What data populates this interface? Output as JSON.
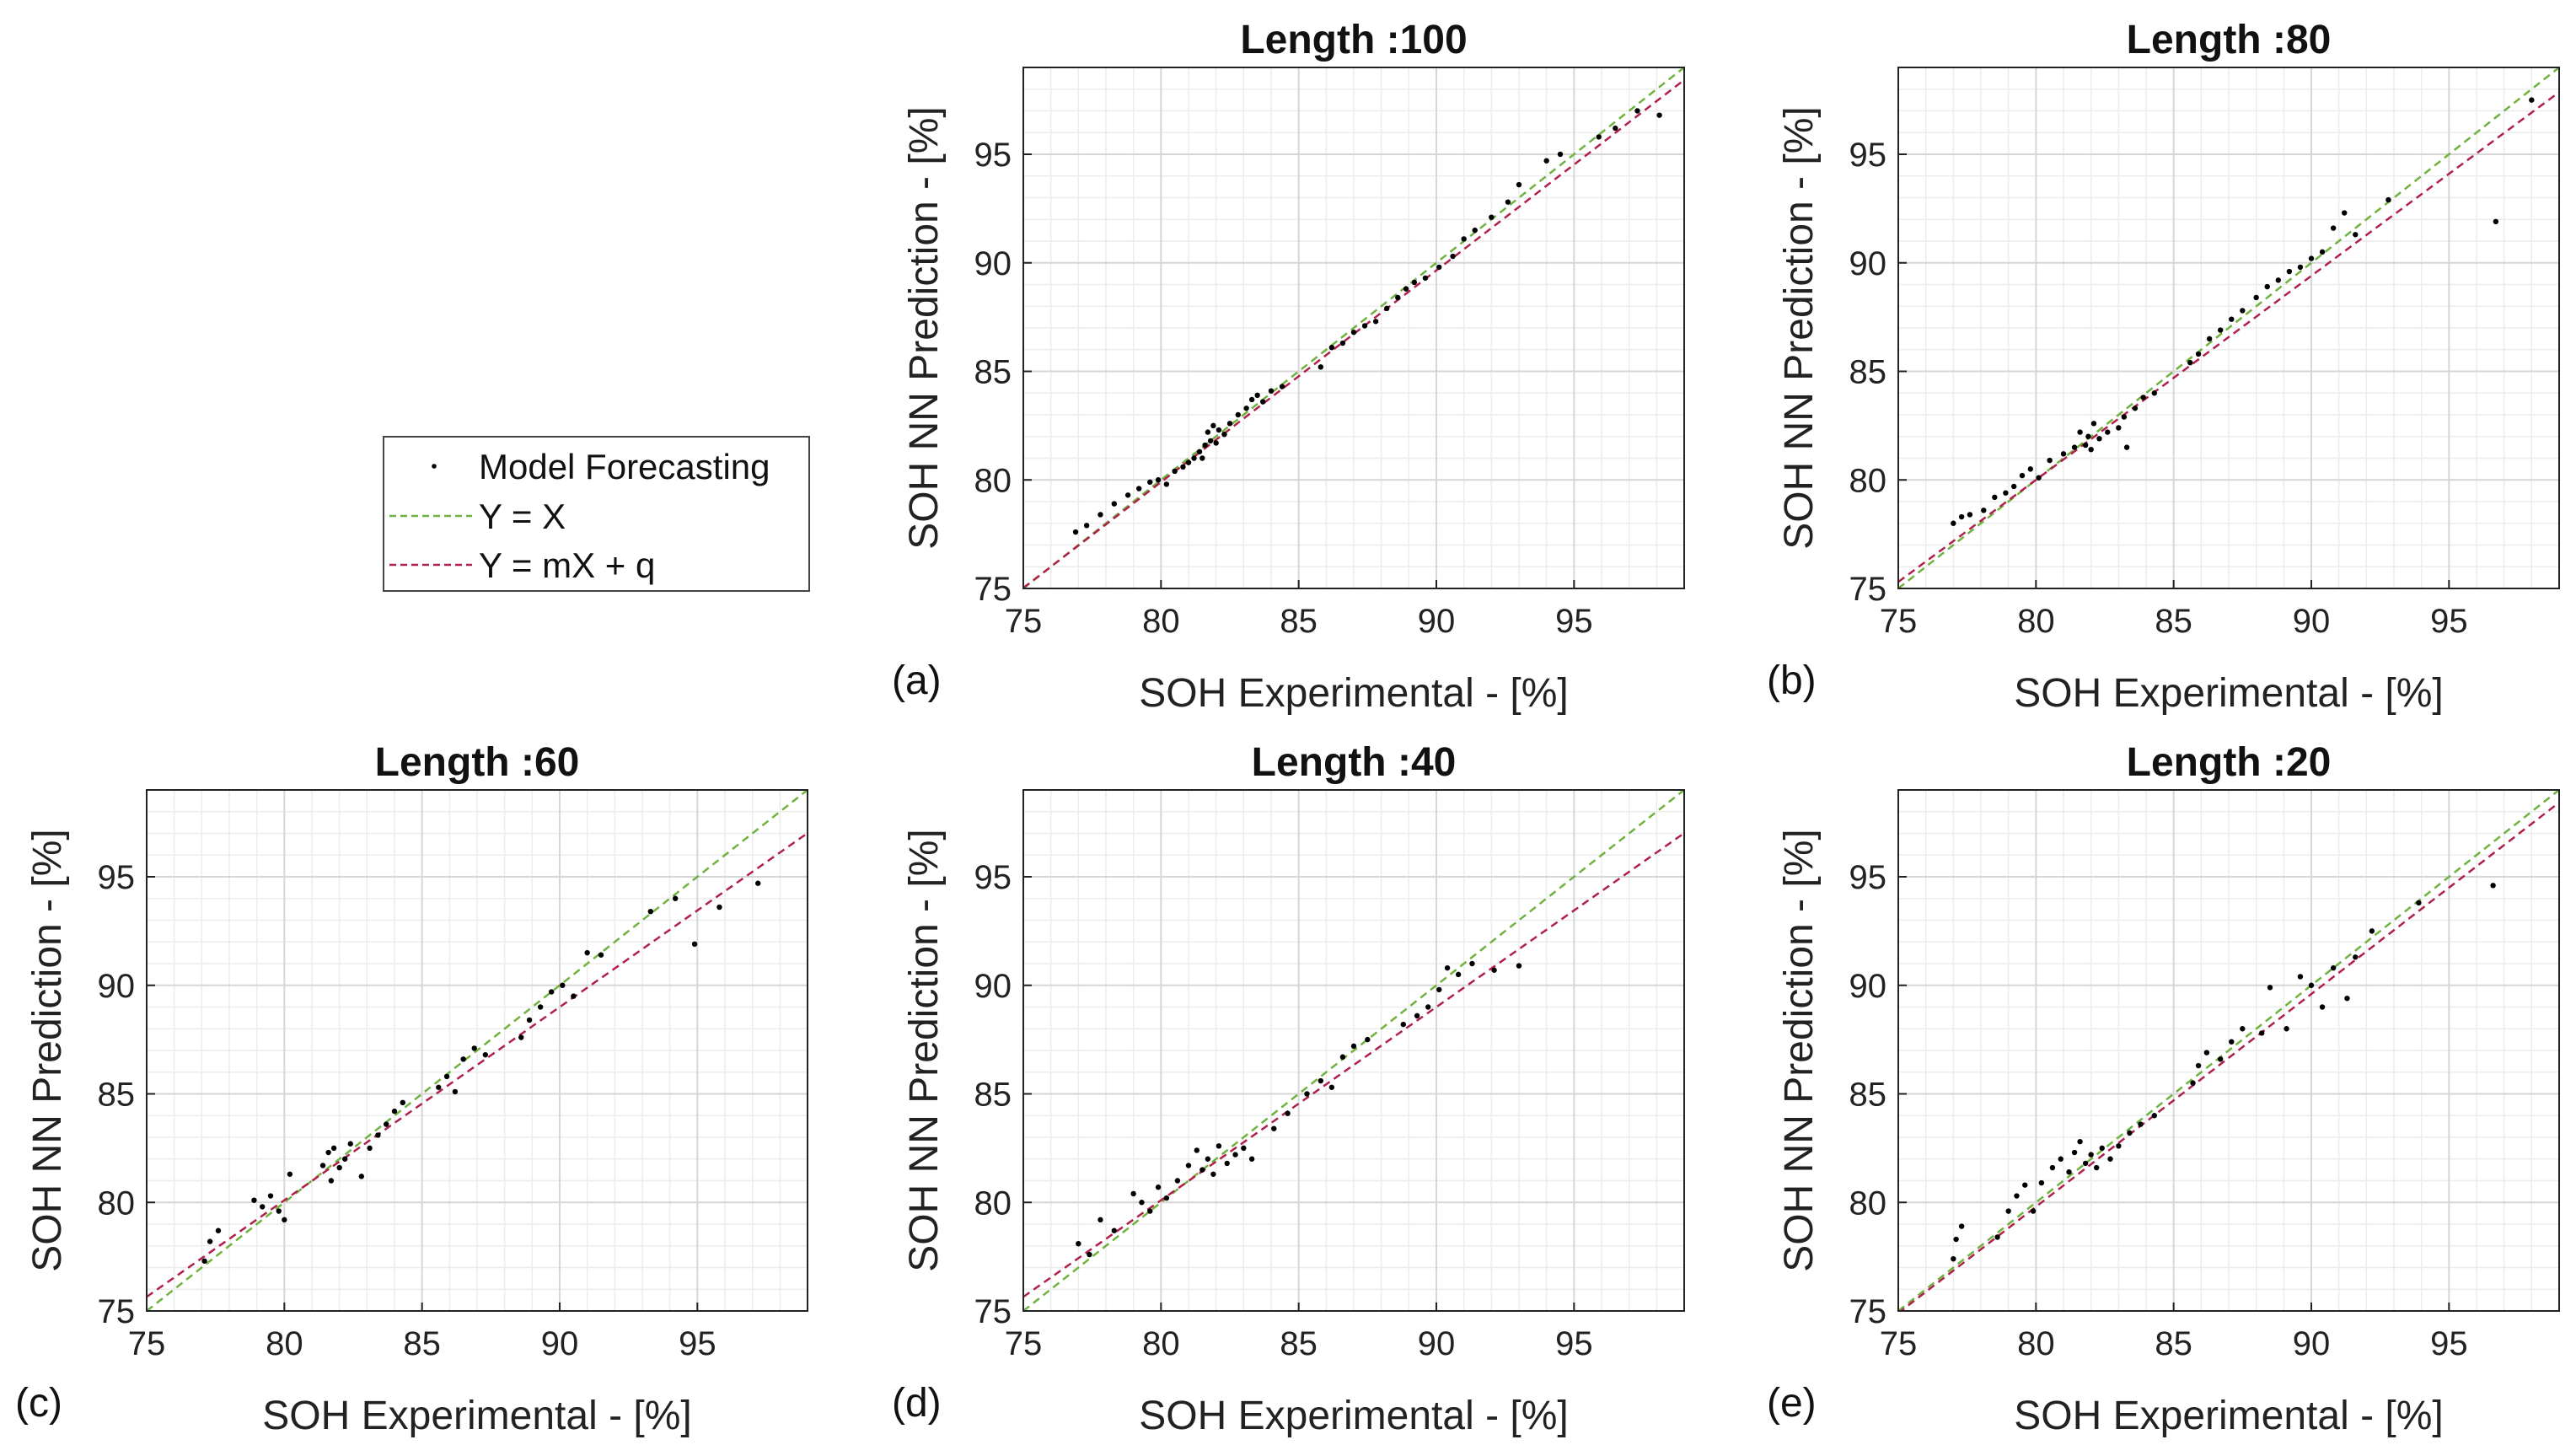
{
  "colors": {
    "identity_line": "#6fb33f",
    "fit_line": "#b0204a",
    "points": "#000000",
    "grid_major": "#d6d6d6",
    "grid_minor": "#ececec",
    "axes": "#222222"
  },
  "legend": {
    "items": [
      {
        "label": "Model Forecasting",
        "kind": "marker"
      },
      {
        "label": "Y = X",
        "kind": "identity"
      },
      {
        "label": "Y = mX + q",
        "kind": "fit"
      }
    ]
  },
  "chart_data": [
    {
      "panel": "(a)",
      "type": "scatter",
      "title": "Length :100",
      "xlabel": "SOH Experimental - [%]",
      "ylabel": "SOH NN Prediction - [%]",
      "xlim": [
        75,
        99
      ],
      "ylim": [
        75,
        99
      ],
      "xticks": [
        75,
        80,
        85,
        90,
        95
      ],
      "yticks": [
        75,
        80,
        85,
        90,
        95
      ],
      "grid": true,
      "identity_line": {
        "m": 1.0,
        "q": 0.0
      },
      "fit_line": {
        "m": 0.975,
        "q": 1.9
      },
      "points": [
        [
          76.9,
          77.6
        ],
        [
          77.3,
          77.9
        ],
        [
          77.8,
          78.4
        ],
        [
          78.3,
          78.9
        ],
        [
          78.8,
          79.3
        ],
        [
          79.2,
          79.6
        ],
        [
          79.6,
          79.9
        ],
        [
          79.9,
          80.0
        ],
        [
          80.2,
          79.8
        ],
        [
          80.5,
          80.4
        ],
        [
          80.8,
          80.6
        ],
        [
          81.0,
          80.8
        ],
        [
          81.2,
          81.0
        ],
        [
          81.4,
          81.3
        ],
        [
          81.5,
          81.0
        ],
        [
          81.6,
          81.6
        ],
        [
          81.7,
          82.2
        ],
        [
          81.8,
          81.8
        ],
        [
          81.9,
          82.5
        ],
        [
          82.0,
          81.7
        ],
        [
          82.1,
          82.3
        ],
        [
          82.3,
          82.1
        ],
        [
          82.5,
          82.6
        ],
        [
          82.8,
          83.0
        ],
        [
          83.1,
          83.3
        ],
        [
          83.3,
          83.7
        ],
        [
          83.5,
          83.9
        ],
        [
          83.7,
          83.6
        ],
        [
          84.0,
          84.1
        ],
        [
          84.4,
          84.3
        ],
        [
          85.8,
          85.2
        ],
        [
          86.2,
          86.1
        ],
        [
          86.6,
          86.3
        ],
        [
          87.0,
          86.8
        ],
        [
          87.4,
          87.1
        ],
        [
          87.8,
          87.3
        ],
        [
          88.2,
          87.9
        ],
        [
          88.6,
          88.4
        ],
        [
          88.9,
          88.8
        ],
        [
          89.2,
          89.1
        ],
        [
          89.6,
          89.3
        ],
        [
          90.1,
          89.8
        ],
        [
          90.6,
          90.3
        ],
        [
          91.0,
          91.1
        ],
        [
          91.4,
          91.5
        ],
        [
          92.0,
          92.1
        ],
        [
          92.6,
          92.8
        ],
        [
          93.0,
          93.6
        ],
        [
          94.0,
          94.7
        ],
        [
          94.5,
          95.0
        ],
        [
          95.9,
          95.8
        ],
        [
          96.5,
          96.2
        ],
        [
          97.3,
          97.0
        ],
        [
          98.1,
          96.8
        ]
      ]
    },
    {
      "panel": "(b)",
      "type": "scatter",
      "title": "Length :80",
      "xlabel": "SOH Experimental - [%]",
      "ylabel": "SOH NN Prediction - [%]",
      "xlim": [
        75,
        99
      ],
      "ylim": [
        75,
        99
      ],
      "xticks": [
        75,
        80,
        85,
        90,
        95
      ],
      "yticks": [
        75,
        80,
        85,
        90,
        95
      ],
      "grid": true,
      "identity_line": {
        "m": 1.0,
        "q": 0.0
      },
      "fit_line": {
        "m": 0.94,
        "q": 4.8
      },
      "points": [
        [
          77.0,
          78.0
        ],
        [
          77.3,
          78.3
        ],
        [
          77.6,
          78.4
        ],
        [
          78.1,
          78.6
        ],
        [
          78.5,
          79.2
        ],
        [
          78.9,
          79.4
        ],
        [
          79.2,
          79.7
        ],
        [
          79.5,
          80.2
        ],
        [
          79.8,
          80.5
        ],
        [
          80.1,
          80.1
        ],
        [
          80.5,
          80.9
        ],
        [
          81.0,
          81.2
        ],
        [
          81.4,
          81.5
        ],
        [
          81.6,
          82.2
        ],
        [
          81.8,
          81.6
        ],
        [
          81.9,
          82.0
        ],
        [
          82.0,
          81.4
        ],
        [
          82.1,
          82.6
        ],
        [
          82.3,
          81.9
        ],
        [
          82.6,
          82.2
        ],
        [
          83.0,
          82.4
        ],
        [
          83.2,
          82.9
        ],
        [
          83.3,
          81.5
        ],
        [
          83.6,
          83.3
        ],
        [
          83.9,
          83.8
        ],
        [
          84.3,
          84.0
        ],
        [
          85.6,
          85.4
        ],
        [
          85.9,
          85.8
        ],
        [
          86.3,
          86.5
        ],
        [
          86.7,
          86.9
        ],
        [
          87.1,
          87.4
        ],
        [
          87.5,
          87.8
        ],
        [
          88.0,
          88.4
        ],
        [
          88.4,
          88.9
        ],
        [
          88.8,
          89.2
        ],
        [
          89.2,
          89.6
        ],
        [
          89.6,
          89.8
        ],
        [
          90.0,
          90.2
        ],
        [
          90.4,
          90.5
        ],
        [
          90.8,
          91.6
        ],
        [
          91.2,
          92.3
        ],
        [
          91.6,
          91.3
        ],
        [
          92.8,
          92.9
        ],
        [
          96.7,
          91.9
        ],
        [
          98.0,
          97.5
        ]
      ]
    },
    {
      "panel": "(c)",
      "type": "scatter",
      "title": "Length :60",
      "xlabel": "SOH Experimental - [%]",
      "ylabel": "SOH NN Prediction - [%]",
      "xlim": [
        75,
        99
      ],
      "ylim": [
        75,
        99
      ],
      "xticks": [
        75,
        80,
        85,
        90,
        95
      ],
      "yticks": [
        75,
        80,
        85,
        90,
        95
      ],
      "grid": true,
      "identity_line": {
        "m": 1.0,
        "q": 0.0
      },
      "fit_line": {
        "m": 0.89,
        "q": 8.9
      },
      "points": [
        [
          77.1,
          77.3
        ],
        [
          77.3,
          78.2
        ],
        [
          77.6,
          78.7
        ],
        [
          78.9,
          80.1
        ],
        [
          79.2,
          79.8
        ],
        [
          79.5,
          80.3
        ],
        [
          79.8,
          79.6
        ],
        [
          80.0,
          79.2
        ],
        [
          80.2,
          81.3
        ],
        [
          81.4,
          81.7
        ],
        [
          81.6,
          82.3
        ],
        [
          81.7,
          81.0
        ],
        [
          81.8,
          82.5
        ],
        [
          82.0,
          81.6
        ],
        [
          82.2,
          82.0
        ],
        [
          82.4,
          82.7
        ],
        [
          82.8,
          81.2
        ],
        [
          83.1,
          82.5
        ],
        [
          83.4,
          83.1
        ],
        [
          83.7,
          83.6
        ],
        [
          84.0,
          84.2
        ],
        [
          84.3,
          84.6
        ],
        [
          85.6,
          85.3
        ],
        [
          85.9,
          85.8
        ],
        [
          86.2,
          85.1
        ],
        [
          86.5,
          86.6
        ],
        [
          86.9,
          87.1
        ],
        [
          87.3,
          86.8
        ],
        [
          88.6,
          87.6
        ],
        [
          88.9,
          88.4
        ],
        [
          89.3,
          89.0
        ],
        [
          89.7,
          89.7
        ],
        [
          90.1,
          90.0
        ],
        [
          90.5,
          89.5
        ],
        [
          91.0,
          91.5
        ],
        [
          91.5,
          91.4
        ],
        [
          93.3,
          93.4
        ],
        [
          94.2,
          94.0
        ],
        [
          94.9,
          91.9
        ],
        [
          95.8,
          93.6
        ],
        [
          97.2,
          94.7
        ]
      ]
    },
    {
      "panel": "(d)",
      "type": "scatter",
      "title": "Length :40",
      "xlabel": "SOH Experimental - [%]",
      "ylabel": "SOH NN Prediction - [%]",
      "xlim": [
        75,
        99
      ],
      "ylim": [
        75,
        99
      ],
      "xticks": [
        75,
        80,
        85,
        90,
        95
      ],
      "yticks": [
        75,
        80,
        85,
        90,
        95
      ],
      "grid": true,
      "identity_line": {
        "m": 1.0,
        "q": 0.0
      },
      "fit_line": {
        "m": 0.89,
        "q": 8.9
      },
      "points": [
        [
          77.0,
          78.1
        ],
        [
          77.4,
          77.6
        ],
        [
          77.8,
          79.2
        ],
        [
          78.3,
          78.7
        ],
        [
          79.0,
          80.4
        ],
        [
          79.3,
          80.0
        ],
        [
          79.6,
          79.6
        ],
        [
          79.9,
          80.7
        ],
        [
          80.2,
          80.2
        ],
        [
          80.6,
          81.0
        ],
        [
          81.0,
          81.7
        ],
        [
          81.3,
          82.4
        ],
        [
          81.5,
          81.5
        ],
        [
          81.7,
          82.0
        ],
        [
          81.9,
          81.3
        ],
        [
          82.1,
          82.6
        ],
        [
          82.4,
          81.8
        ],
        [
          82.7,
          82.2
        ],
        [
          83.0,
          82.5
        ],
        [
          83.3,
          82.0
        ],
        [
          84.1,
          83.4
        ],
        [
          84.6,
          84.1
        ],
        [
          85.3,
          85.0
        ],
        [
          85.8,
          85.6
        ],
        [
          86.2,
          85.3
        ],
        [
          86.6,
          86.7
        ],
        [
          87.0,
          87.2
        ],
        [
          87.5,
          87.5
        ],
        [
          88.8,
          88.2
        ],
        [
          89.3,
          88.6
        ],
        [
          89.7,
          89.0
        ],
        [
          90.1,
          89.8
        ],
        [
          90.4,
          90.8
        ],
        [
          90.8,
          90.5
        ],
        [
          91.3,
          91.0
        ],
        [
          92.1,
          90.7
        ],
        [
          93.0,
          90.9
        ]
      ]
    },
    {
      "panel": "(e)",
      "type": "scatter",
      "title": "Length :20",
      "xlabel": "SOH Experimental - [%]",
      "ylabel": "SOH NN Prediction - [%]",
      "xlim": [
        75,
        99
      ],
      "ylim": [
        75,
        99
      ],
      "xticks": [
        75,
        80,
        85,
        90,
        95
      ],
      "yticks": [
        75,
        80,
        85,
        90,
        95
      ],
      "grid": true,
      "identity_line": {
        "m": 1.0,
        "q": 0.0
      },
      "fit_line": {
        "m": 0.98,
        "q": 1.4
      },
      "points": [
        [
          77.0,
          77.4
        ],
        [
          77.1,
          78.3
        ],
        [
          77.3,
          78.9
        ],
        [
          78.6,
          78.4
        ],
        [
          79.0,
          79.6
        ],
        [
          79.3,
          80.3
        ],
        [
          79.6,
          80.8
        ],
        [
          79.9,
          79.6
        ],
        [
          80.2,
          80.9
        ],
        [
          80.6,
          81.6
        ],
        [
          80.9,
          82.0
        ],
        [
          81.2,
          81.4
        ],
        [
          81.4,
          82.3
        ],
        [
          81.6,
          82.8
        ],
        [
          81.8,
          81.8
        ],
        [
          82.0,
          82.2
        ],
        [
          82.2,
          81.6
        ],
        [
          82.4,
          82.5
        ],
        [
          82.7,
          82.0
        ],
        [
          83.0,
          82.6
        ],
        [
          83.4,
          83.2
        ],
        [
          83.8,
          83.6
        ],
        [
          84.3,
          84.0
        ],
        [
          85.7,
          85.5
        ],
        [
          85.9,
          86.3
        ],
        [
          86.2,
          86.9
        ],
        [
          86.7,
          86.6
        ],
        [
          87.1,
          87.4
        ],
        [
          87.5,
          88.0
        ],
        [
          88.2,
          87.8
        ],
        [
          88.5,
          89.9
        ],
        [
          89.1,
          88.0
        ],
        [
          89.6,
          90.4
        ],
        [
          90.0,
          90.0
        ],
        [
          90.4,
          89.0
        ],
        [
          90.8,
          90.8
        ],
        [
          91.3,
          89.4
        ],
        [
          91.6,
          91.3
        ],
        [
          92.2,
          92.5
        ],
        [
          93.9,
          93.8
        ],
        [
          96.6,
          94.6
        ]
      ]
    }
  ]
}
